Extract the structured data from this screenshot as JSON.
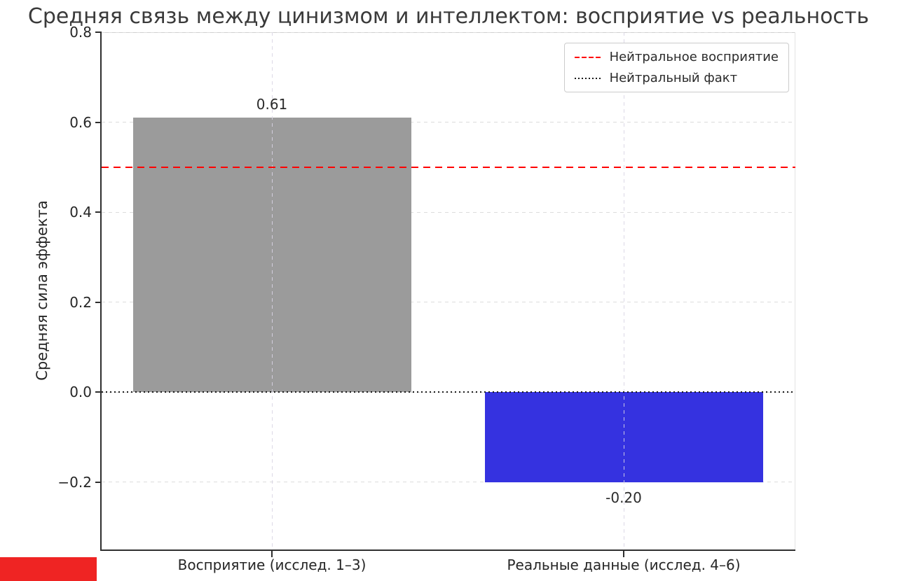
{
  "title": "Средняя связь между цинизмом и интеллектом: восприятие vs реальность",
  "ylabel": "Средняя сила эффекта",
  "legend": {
    "items": [
      {
        "label": "Нейтральное восприятие",
        "line_style": "dashed",
        "color": "#ff0000"
      },
      {
        "label": "Нейтральный факт",
        "line_style": "dotted",
        "color": "#1a1a1a"
      }
    ]
  },
  "marker_block_color": "#ef2423",
  "chart_data": {
    "type": "bar",
    "title": "Средняя связь между цинизмом и интеллектом: восприятие vs реальность",
    "xlabel": "",
    "ylabel": "Средняя сила эффекта",
    "categories": [
      "Восприятие (исслед. 1–3)",
      "Реальные данные (исслед. 4–6)"
    ],
    "values": [
      0.61,
      -0.2
    ],
    "bar_labels": [
      "0.61",
      "-0.20"
    ],
    "bar_colors": [
      "#9b9b9b",
      "#3532e0"
    ],
    "ylim": [
      -0.35,
      0.8
    ],
    "yticks": [
      0.8,
      0.6,
      0.4,
      0.2,
      0.0,
      -0.2
    ],
    "ytick_labels": [
      "0.8",
      "0.6",
      "0.4",
      "0.2",
      "0.0",
      "−0.2"
    ],
    "reference_lines": [
      {
        "value": 0.5,
        "style": "dashed",
        "color": "#ff0000",
        "name": "Нейтральное восприятие"
      },
      {
        "value": 0.0,
        "style": "dotted",
        "color": "#1a1a1a",
        "name": "Нейтральный факт"
      }
    ],
    "grid": true,
    "legend_position": "upper right"
  }
}
